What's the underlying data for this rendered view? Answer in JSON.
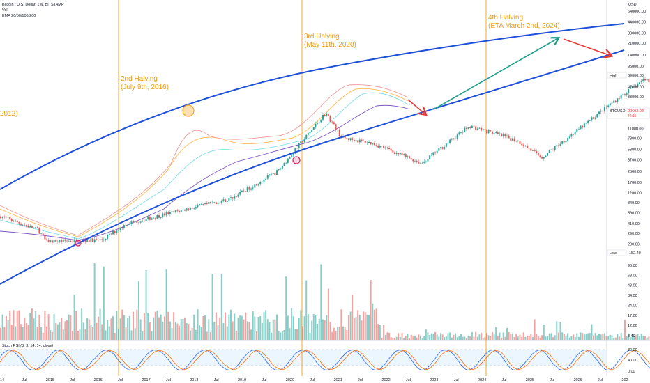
{
  "header": {
    "symbol_line": "Bitcoin / U.S. Dollar, 1W, BITSTAMP",
    "vol_label": "Vol",
    "ema_label": "EMA 20/50/100/200"
  },
  "price_axis": {
    "currency": "USD",
    "ticks": [
      "640000.00",
      "440000.00",
      "300000.00",
      "210000.00",
      "140000.00",
      "95000.00",
      "47000.00",
      "33000.00",
      "11000.00",
      "7800.00",
      "5300.00",
      "3700.00",
      "2500.00",
      "1700.00",
      "1200.00",
      "840.00",
      "590.00",
      "410.00",
      "290.00",
      "200.00",
      "96.00",
      "68.00",
      "48.00",
      "34.00",
      "24.00",
      "17.00",
      "12.00",
      "8.40"
    ],
    "high_label": "High",
    "high_value": "69000.00",
    "low_label": "Low",
    "low_value": "152.40",
    "current_ticker": "BTCUSD",
    "current_price": "20602.98",
    "current_sub": "42:15"
  },
  "rsi_axis": {
    "label": "Stoch RSI (3, 3, 14, 14, close)",
    "ticks": [
      "80.00",
      "40.00",
      "0.00"
    ]
  },
  "time_axis": {
    "labels": [
      "14",
      "Jul",
      "2015",
      "Jul",
      "2016",
      "Jul",
      "2017",
      "Jul",
      "2018",
      "Jul",
      "2019",
      "Jul",
      "2020",
      "Jul",
      "2021",
      "Jul",
      "2022",
      "Jul",
      "2023",
      "Jul",
      "2024",
      "Jul",
      "2025",
      "Jul",
      "2026",
      "Jul",
      "202"
    ]
  },
  "annotations": {
    "halving_2012": "2012)",
    "halving_2": "2nd Halving",
    "halving_2_date": "(July 9th, 2016)",
    "halving_3": "3rd Halving",
    "halving_3_date": "(May 11th, 2020)",
    "halving_4": "4th Halving",
    "halving_4_date": "(ETA March 2nd, 2024)"
  },
  "colors": {
    "halving_line": "#f5a623",
    "annotation_text": "#f39c12",
    "channel": "#1e4fd8",
    "up_candle": "#26a69a",
    "down_candle": "#ef5350",
    "arrow_green": "#1b9e8a",
    "arrow_red": "#e53935",
    "rsi_k": "#2962ff",
    "rsi_d": "#ff6d00",
    "rsi_band": "#e3f2fd"
  },
  "chart_data": {
    "type": "candlestick",
    "title": "Bitcoin / U.S. Dollar, 1W, BITSTAMP",
    "x_scale": "time",
    "y_scale": "log",
    "approx_price_path": [
      {
        "t": "2014-06",
        "price": 600
      },
      {
        "t": "2014-12",
        "price": 330
      },
      {
        "t": "2015-01",
        "price": 220
      },
      {
        "t": "2015-08",
        "price": 230
      },
      {
        "t": "2015-11",
        "price": 400
      },
      {
        "t": "2016-06",
        "price": 650
      },
      {
        "t": "2016-12",
        "price": 950
      },
      {
        "t": "2017-06",
        "price": 2500
      },
      {
        "t": "2017-12",
        "price": 19000
      },
      {
        "t": "2018-02",
        "price": 8000
      },
      {
        "t": "2018-06",
        "price": 6500
      },
      {
        "t": "2018-12",
        "price": 3300
      },
      {
        "t": "2019-06",
        "price": 12000
      },
      {
        "t": "2019-12",
        "price": 7200
      },
      {
        "t": "2020-03",
        "price": 4000
      },
      {
        "t": "2020-08",
        "price": 11500
      },
      {
        "t": "2020-12",
        "price": 28000
      },
      {
        "t": "2021-04",
        "price": 62000
      },
      {
        "t": "2021-07",
        "price": 32000
      },
      {
        "t": "2021-11",
        "price": 67000
      },
      {
        "t": "2022-01",
        "price": 38000
      },
      {
        "t": "2022-06",
        "price": 20000
      }
    ],
    "halvings": [
      "2012-11-28",
      "2016-07-09",
      "2020-05-11",
      "2024-03-02"
    ],
    "y_range": [
      5,
      900000
    ]
  }
}
